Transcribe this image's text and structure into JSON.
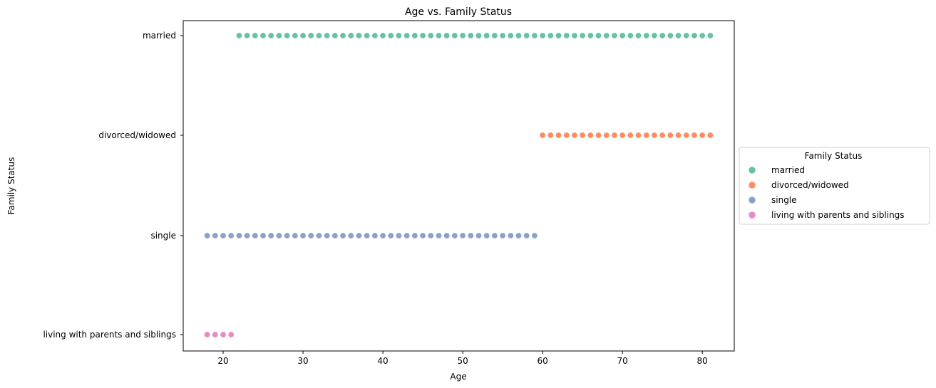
{
  "chart_data": {
    "type": "scatter",
    "title": "Age vs. Family Status",
    "xlabel": "Age",
    "ylabel": "Family Status",
    "xlim": [
      15,
      84
    ],
    "xticks": [
      20,
      30,
      40,
      50,
      60,
      70,
      80
    ],
    "categories": [
      "married",
      "divorced/widowed",
      "single",
      "living with parents and siblings"
    ],
    "grid": false,
    "legend": {
      "title": "Family Status",
      "placement": "center-right outside"
    },
    "series": [
      {
        "name": "married",
        "color": "#66c2a5",
        "category": "married",
        "x": [
          22,
          23,
          24,
          25,
          26,
          27,
          28,
          29,
          30,
          31,
          32,
          33,
          34,
          35,
          36,
          37,
          38,
          39,
          40,
          41,
          42,
          43,
          44,
          45,
          46,
          47,
          48,
          49,
          50,
          51,
          52,
          53,
          54,
          55,
          56,
          57,
          58,
          59,
          60,
          61,
          62,
          63,
          64,
          65,
          66,
          67,
          68,
          69,
          70,
          71,
          72,
          73,
          74,
          75,
          76,
          77,
          78,
          79,
          80,
          81
        ]
      },
      {
        "name": "divorced/widowed",
        "color": "#fc8d62",
        "category": "divorced/widowed",
        "x": [
          60,
          61,
          62,
          63,
          64,
          65,
          66,
          67,
          68,
          69,
          70,
          71,
          72,
          73,
          74,
          75,
          76,
          77,
          78,
          79,
          80,
          81
        ]
      },
      {
        "name": "single",
        "color": "#8da0cb",
        "category": "single",
        "x": [
          18,
          19,
          20,
          21,
          22,
          23,
          24,
          25,
          26,
          27,
          28,
          29,
          30,
          31,
          32,
          33,
          34,
          35,
          36,
          37,
          38,
          39,
          40,
          41,
          42,
          43,
          44,
          45,
          46,
          47,
          48,
          49,
          50,
          51,
          52,
          53,
          54,
          55,
          56,
          57,
          58,
          59
        ]
      },
      {
        "name": "living with parents and siblings",
        "color": "#e78ac3",
        "category": "living with parents and siblings",
        "x": [
          18,
          19,
          20,
          21
        ]
      }
    ]
  }
}
